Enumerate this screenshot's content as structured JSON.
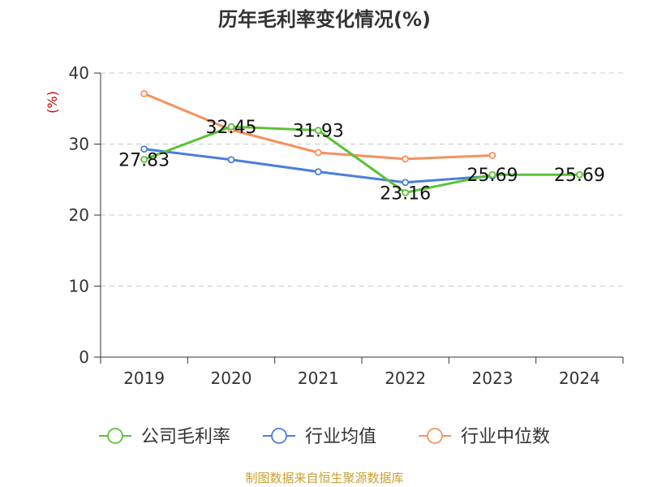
{
  "chart_data": {
    "type": "line",
    "title": "历年毛利率变化情况(%)",
    "ylabel": "(%)",
    "xlabel": "",
    "categories": [
      "2019",
      "2020",
      "2021",
      "2022",
      "2023",
      "2024"
    ],
    "ylim": [
      0,
      40
    ],
    "yticks": [
      0,
      10,
      20,
      30,
      40
    ],
    "grid": true,
    "legend_position": "bottom",
    "series": [
      {
        "name": "公司毛利率",
        "color": "#5bc236",
        "values": [
          27.83,
          32.45,
          31.93,
          23.16,
          25.69,
          25.69
        ],
        "labels": [
          "27.83",
          "32.45",
          "31.93",
          "23.16",
          "25.69",
          "25.69"
        ]
      },
      {
        "name": "行业均值",
        "color": "#4a7fdc",
        "values": [
          29.3,
          27.8,
          26.1,
          24.6,
          25.5,
          null
        ]
      },
      {
        "name": "行业中位数",
        "color": "#f5925e",
        "values": [
          37.1,
          32.0,
          28.8,
          27.9,
          28.4,
          null
        ]
      }
    ]
  },
  "footer": {
    "source": "制图数据来自恒生聚源数据库"
  }
}
